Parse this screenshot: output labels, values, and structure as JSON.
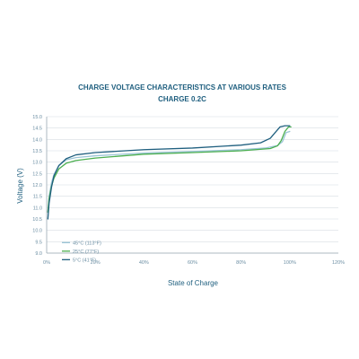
{
  "chart_data": {
    "type": "line",
    "title": "CHARGE VOLTAGE CHARACTERISTICS AT VARIOUS RATES",
    "subtitle": "CHARGE 0.2C",
    "xlabel": "State of Charge",
    "ylabel": "Voltage (V)",
    "xlim": [
      0,
      120
    ],
    "ylim": [
      9.0,
      15.0
    ],
    "x_ticks": [
      0,
      20,
      40,
      60,
      80,
      100,
      120
    ],
    "x_tick_labels": [
      "0%",
      "20%",
      "40%",
      "60%",
      "80%",
      "100%",
      "120%"
    ],
    "y_ticks": [
      9.0,
      9.5,
      10.0,
      10.5,
      11.0,
      11.5,
      12.0,
      12.5,
      13.0,
      13.5,
      14.0,
      14.5,
      15.0
    ],
    "y_tick_labels": [
      "9.0",
      "9.5",
      "10.0",
      "10.5",
      "11.0",
      "11.5",
      "12.0",
      "12.5",
      "13.0",
      "13.5",
      "14.0",
      "14.5",
      "15.0"
    ],
    "grid": "horizontal",
    "legend_position": "bottom-left",
    "series": [
      {
        "name": "45°C (113°F)",
        "color": "#9bc4d6",
        "x": [
          0.5,
          1,
          2,
          3,
          5,
          8,
          12,
          20,
          40,
          60,
          80,
          90,
          95,
          97,
          98.5,
          100
        ],
        "y": [
          10.8,
          11.5,
          12.1,
          12.45,
          12.85,
          13.1,
          13.2,
          13.28,
          13.4,
          13.47,
          13.55,
          13.62,
          13.73,
          13.9,
          14.3,
          14.35
        ]
      },
      {
        "name": "25°C (77°F)",
        "color": "#4caf50",
        "x": [
          0.5,
          1,
          2,
          3,
          5,
          8,
          12,
          20,
          40,
          60,
          80,
          92,
          95,
          96.5,
          98,
          99.5,
          100.5
        ],
        "y": [
          10.8,
          11.4,
          11.95,
          12.3,
          12.7,
          12.95,
          13.07,
          13.18,
          13.35,
          13.42,
          13.5,
          13.6,
          13.72,
          13.95,
          14.35,
          14.55,
          14.55
        ]
      },
      {
        "name": "5°C (41°F)",
        "color": "#1f5f7f",
        "x": [
          0.5,
          1,
          2,
          3,
          5,
          8,
          12,
          20,
          40,
          60,
          80,
          88,
          92,
          94,
          96,
          98,
          100
        ],
        "y": [
          10.5,
          11.2,
          11.9,
          12.4,
          12.85,
          13.15,
          13.32,
          13.42,
          13.55,
          13.62,
          13.75,
          13.85,
          14.05,
          14.3,
          14.55,
          14.6,
          14.6
        ]
      }
    ]
  }
}
